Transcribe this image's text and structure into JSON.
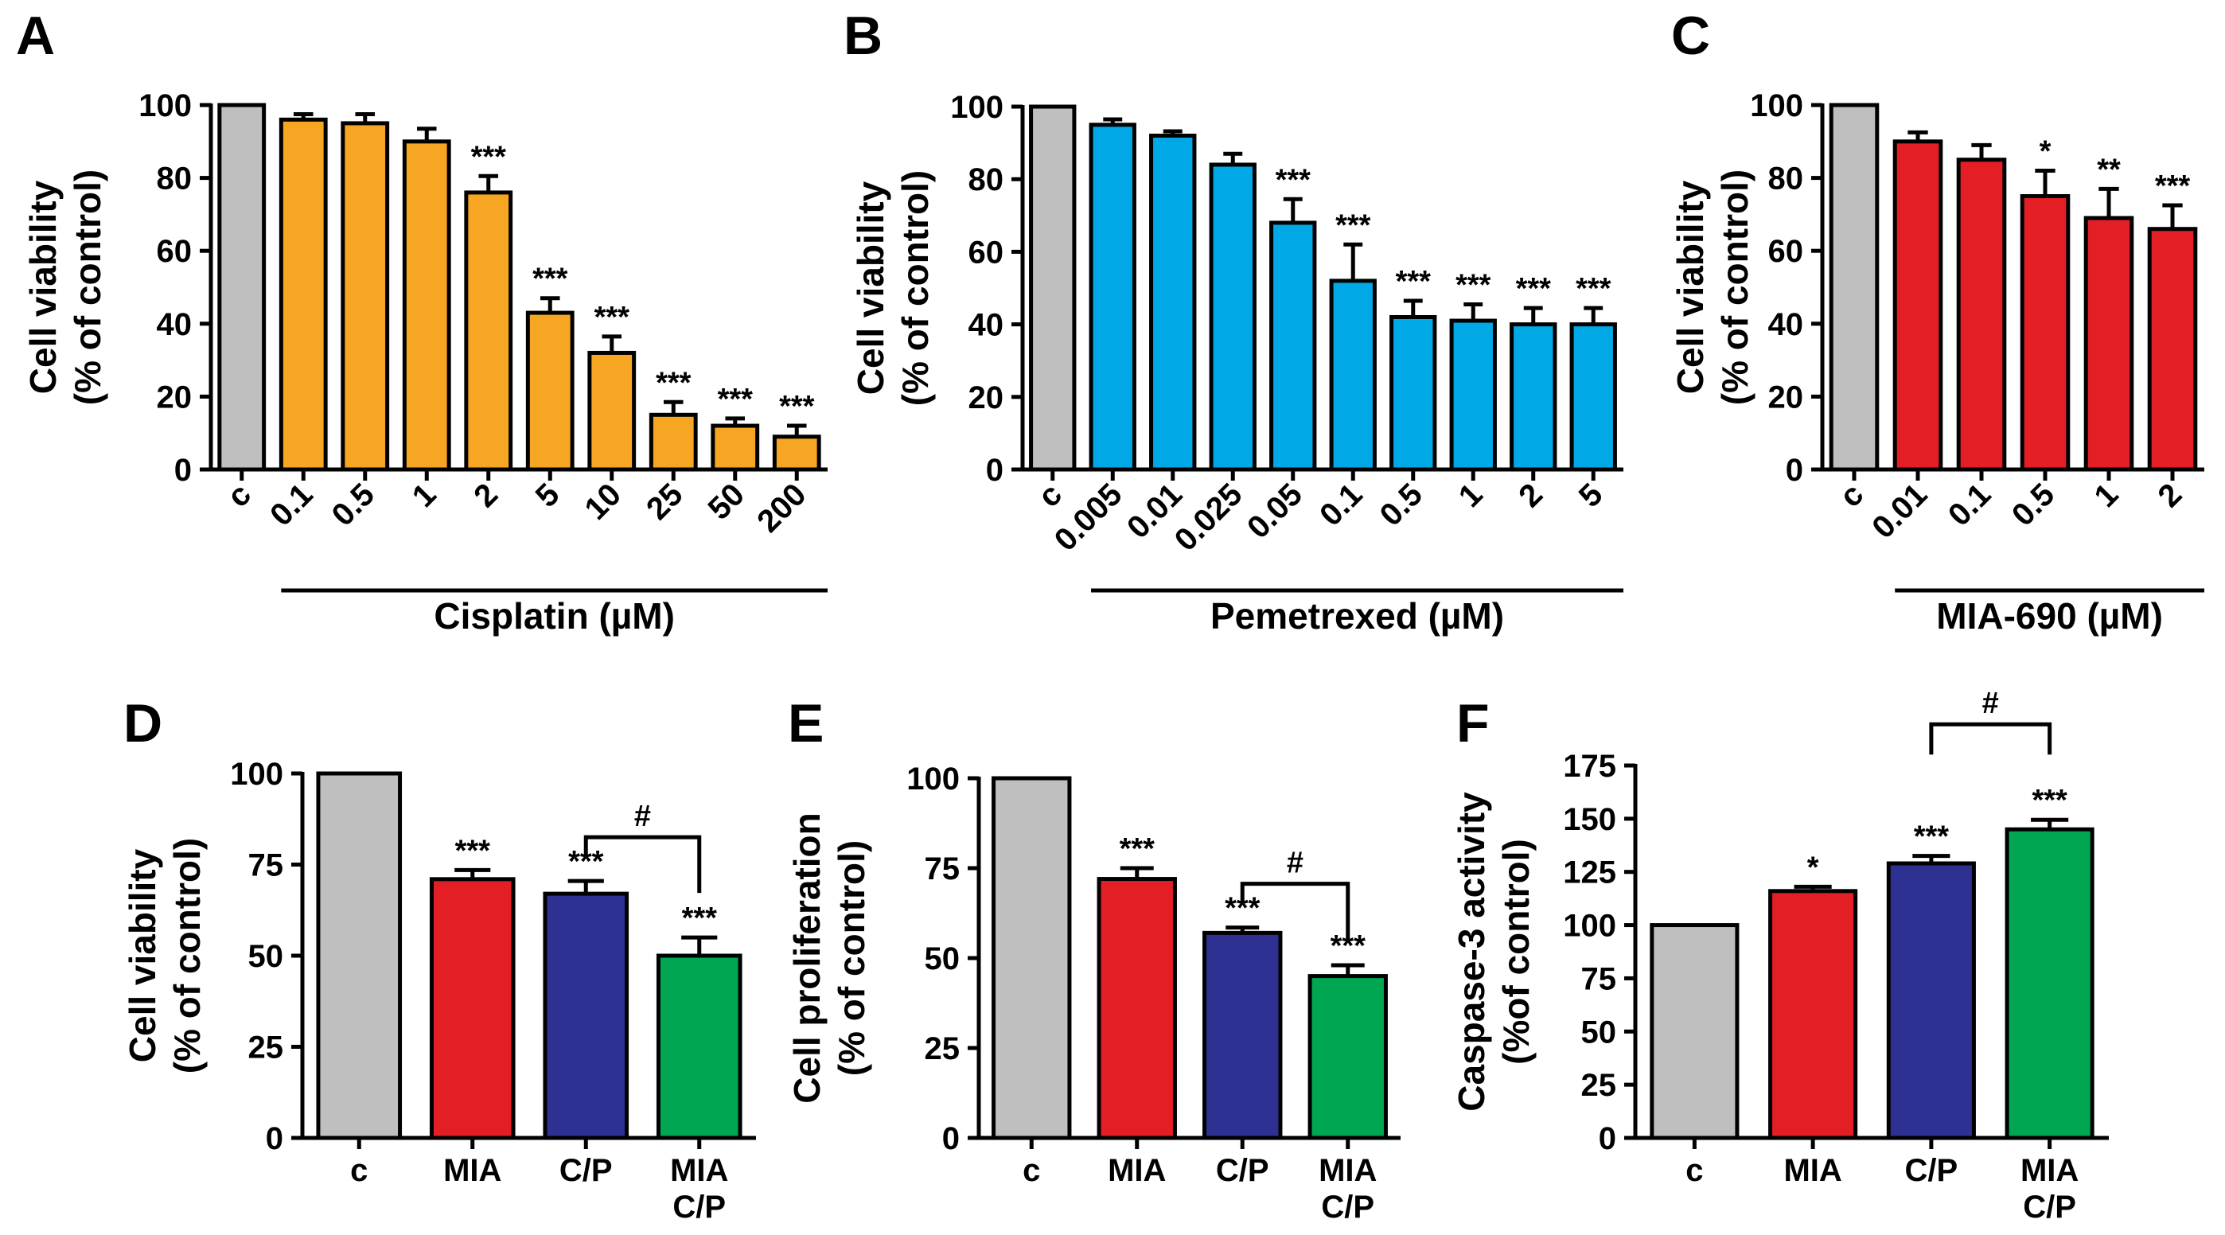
{
  "chart_data": [
    {
      "id": "A",
      "type": "bar",
      "letter": "A",
      "categories": [
        "c",
        "0.1",
        "0.5",
        "1",
        "2",
        "5",
        "10",
        "25",
        "50",
        "200"
      ],
      "values": [
        100,
        96,
        95,
        90,
        76,
        43,
        32,
        15,
        12,
        9
      ],
      "errors": [
        0,
        1.5,
        2.5,
        3.5,
        4.5,
        4,
        4.5,
        3.5,
        2,
        3
      ],
      "colors": [
        "#bfbfbf",
        "#f6a623",
        "#f6a623",
        "#f6a623",
        "#f6a623",
        "#f6a623",
        "#f6a623",
        "#f6a623",
        "#f6a623",
        "#f6a623"
      ],
      "significance": [
        "",
        "",
        "",
        "",
        "***",
        "***",
        "***",
        "***",
        "***",
        "***"
      ],
      "ylabel_line1": "Cell viability",
      "ylabel_line2": "(% of control)",
      "xtitle": "Cisplatin (µM)",
      "ylim": [
        0,
        100
      ],
      "yticks": [
        "0",
        "20",
        "40",
        "60",
        "80",
        "100"
      ],
      "rotate_labels": true,
      "brackets": []
    },
    {
      "id": "B",
      "type": "bar",
      "letter": "B",
      "categories": [
        "c",
        "0.005",
        "0.01",
        "0.025",
        "0.05",
        "0.1",
        "0.5",
        "1",
        "2",
        "5"
      ],
      "values": [
        100,
        95,
        92,
        84,
        68,
        52,
        42,
        41,
        40,
        40
      ],
      "errors": [
        0,
        1.5,
        1.2,
        3,
        6.5,
        10,
        4.5,
        4.5,
        4.5,
        4.5
      ],
      "colors": [
        "#bfbfbf",
        "#00a9e6",
        "#00a9e6",
        "#00a9e6",
        "#00a9e6",
        "#00a9e6",
        "#00a9e6",
        "#00a9e6",
        "#00a9e6",
        "#00a9e6"
      ],
      "significance": [
        "",
        "",
        "",
        "",
        "***",
        "***",
        "***",
        "***",
        "***",
        "***"
      ],
      "ylabel_line1": "Cell viability",
      "ylabel_line2": "(% of control)",
      "xtitle": "Pemetrexed (µM)",
      "ylim": [
        0,
        100
      ],
      "yticks": [
        "0",
        "20",
        "40",
        "60",
        "80",
        "100"
      ],
      "rotate_labels": true,
      "brackets": []
    },
    {
      "id": "C",
      "type": "bar",
      "letter": "C",
      "categories": [
        "c",
        "0.01",
        "0.1",
        "0.5",
        "1",
        "2"
      ],
      "values": [
        100,
        90,
        85,
        75,
        69,
        66
      ],
      "errors": [
        0,
        2.5,
        4,
        7,
        8,
        6.5
      ],
      "colors": [
        "#bfbfbf",
        "#e31e24",
        "#e31e24",
        "#e31e24",
        "#e31e24",
        "#e31e24"
      ],
      "significance": [
        "",
        "",
        "",
        "*",
        "**",
        "***"
      ],
      "ylabel_line1": "Cell viability",
      "ylabel_line2": "(% of control)",
      "xtitle": "MIA-690 (µM)",
      "ylim": [
        0,
        100
      ],
      "yticks": [
        "0",
        "20",
        "40",
        "60",
        "80",
        "100"
      ],
      "rotate_labels": true,
      "brackets": []
    },
    {
      "id": "D",
      "type": "bar",
      "letter": "D",
      "categories": [
        "c",
        "MIA",
        "C/P",
        "MIA C/P"
      ],
      "values": [
        100,
        71,
        67,
        50
      ],
      "errors": [
        0,
        2.5,
        3.5,
        5
      ],
      "colors": [
        "#bfbfbf",
        "#e31e24",
        "#2e3192",
        "#00a651"
      ],
      "significance": [
        "",
        "***",
        "***",
        "***"
      ],
      "ylabel_line1": "Cell viability",
      "ylabel_line2": "(% of control)",
      "xtitle": "",
      "ylim": [
        0,
        100
      ],
      "yticks": [
        "0",
        "25",
        "50",
        "75",
        "100"
      ],
      "rotate_labels": false,
      "brackets": [
        {
          "from": 2,
          "to": 3,
          "label": "#"
        }
      ]
    },
    {
      "id": "E",
      "type": "bar",
      "letter": "E",
      "categories": [
        "c",
        "MIA",
        "C/P",
        "MIA C/P"
      ],
      "values": [
        100,
        72,
        57,
        45
      ],
      "errors": [
        0,
        3,
        1.5,
        3
      ],
      "colors": [
        "#bfbfbf",
        "#e31e24",
        "#2e3192",
        "#00a651"
      ],
      "significance": [
        "",
        "***",
        "***",
        "***"
      ],
      "ylabel_line1": "Cell proliferation",
      "ylabel_line2": "(% of control)",
      "xtitle": "",
      "ylim": [
        0,
        100
      ],
      "yticks": [
        "0",
        "25",
        "50",
        "75",
        "100"
      ],
      "rotate_labels": false,
      "brackets": [
        {
          "from": 2,
          "to": 3,
          "label": "#"
        }
      ]
    },
    {
      "id": "F",
      "type": "bar",
      "letter": "F",
      "categories": [
        "c",
        "MIA",
        "C/P",
        "MIA C/P"
      ],
      "values": [
        100,
        116,
        129,
        145
      ],
      "errors": [
        0,
        2,
        3.5,
        4.5
      ],
      "colors": [
        "#bfbfbf",
        "#e31e24",
        "#2e3192",
        "#00a651"
      ],
      "significance": [
        "",
        "*",
        "***",
        "***"
      ],
      "ylabel_line1": "Caspase-3 activity",
      "ylabel_line2": "(%of control)",
      "xtitle": "",
      "ylim": [
        0,
        175
      ],
      "yticks": [
        "0",
        "25",
        "50",
        "75",
        "100",
        "125",
        "150",
        "175"
      ],
      "rotate_labels": false,
      "brackets": [
        {
          "from": 2,
          "to": 3,
          "label": "#"
        }
      ]
    }
  ]
}
